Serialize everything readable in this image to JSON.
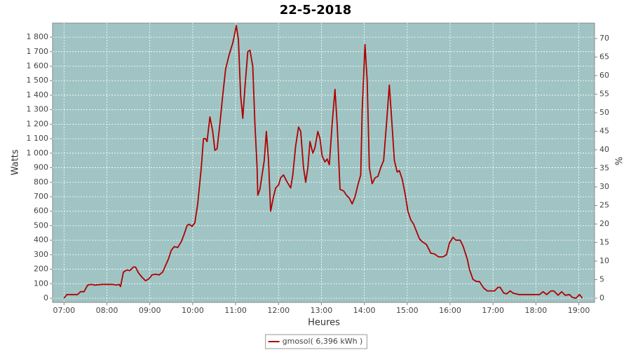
{
  "chart_data": {
    "type": "line",
    "title": "22-5-2018",
    "x_label": "Heures",
    "y_label": "Watts",
    "y2_label": "%",
    "x": [
      "07:00",
      "07:04",
      "07:19",
      "07:23",
      "07:28",
      "07:33",
      "07:38",
      "07:43",
      "07:53",
      "08:08",
      "08:13",
      "08:17",
      "08:19",
      "08:23",
      "08:28",
      "08:32",
      "08:37",
      "08:40",
      "08:44",
      "08:49",
      "08:54",
      "08:59",
      "09:03",
      "09:08",
      "09:13",
      "09:18",
      "09:22",
      "09:26",
      "09:30",
      "09:34",
      "09:39",
      "09:44",
      "09:48",
      "09:52",
      "09:55",
      "09:59",
      "10:03",
      "10:07",
      "10:12",
      "10:15",
      "10:18",
      "10:20",
      "10:24",
      "10:28",
      "10:31",
      "10:34",
      "10:38",
      "10:42",
      "10:46",
      "10:51",
      "10:56",
      "11:01",
      "11:04",
      "11:07",
      "11:10",
      "11:13",
      "11:17",
      "11:20",
      "11:24",
      "11:27",
      "11:30",
      "11:31",
      "11:34",
      "11:37",
      "11:40",
      "11:43",
      "11:46",
      "11:49",
      "11:53",
      "11:56",
      "12:00",
      "12:03",
      "12:07",
      "12:11",
      "12:17",
      "12:20",
      "12:24",
      "12:28",
      "12:31",
      "12:35",
      "12:38",
      "12:41",
      "12:44",
      "12:48",
      "12:51",
      "12:55",
      "12:58",
      "13:01",
      "13:05",
      "13:08",
      "13:11",
      "13:15",
      "13:19",
      "13:22",
      "13:26",
      "13:31",
      "13:35",
      "13:39",
      "13:43",
      "13:47",
      "13:51",
      "13:55",
      "13:57",
      "14:01",
      "14:04",
      "14:07",
      "14:11",
      "14:15",
      "14:19",
      "14:23",
      "14:27",
      "14:31",
      "14:35",
      "14:38",
      "14:42",
      "14:46",
      "14:49",
      "14:53",
      "14:57",
      "15:01",
      "15:05",
      "15:09",
      "15:13",
      "15:17",
      "15:21",
      "15:27",
      "15:33",
      "15:38",
      "15:44",
      "15:50",
      "15:55",
      "15:59",
      "16:04",
      "16:08",
      "16:14",
      "16:18",
      "16:24",
      "16:27",
      "16:32",
      "16:37",
      "16:41",
      "16:47",
      "16:52",
      "17:02",
      "17:07",
      "17:10",
      "17:15",
      "17:19",
      "17:24",
      "17:28",
      "17:36",
      "18:05",
      "18:10",
      "18:15",
      "18:21",
      "18:25",
      "18:31",
      "18:36",
      "18:41",
      "18:47",
      "18:51",
      "18:56",
      "19:01",
      "19:05"
    ],
    "series": [
      {
        "name": "gmosol( 6,396 kWh )",
        "color": "#b00000",
        "values": [
          0,
          25,
          25,
          45,
          45,
          90,
          95,
          90,
          95,
          95,
          90,
          95,
          80,
          180,
          195,
          190,
          215,
          215,
          175,
          145,
          120,
          135,
          160,
          165,
          160,
          180,
          225,
          270,
          330,
          355,
          350,
          390,
          440,
          500,
          510,
          495,
          520,
          650,
          900,
          1100,
          1100,
          1080,
          1250,
          1150,
          1020,
          1030,
          1200,
          1400,
          1580,
          1680,
          1760,
          1880,
          1780,
          1400,
          1240,
          1450,
          1700,
          1710,
          1600,
          1200,
          900,
          710,
          750,
          850,
          950,
          1150,
          950,
          600,
          700,
          760,
          780,
          830,
          850,
          810,
          760,
          850,
          1050,
          1180,
          1150,
          900,
          800,
          900,
          1080,
          1000,
          1040,
          1150,
          1100,
          980,
          940,
          960,
          920,
          1200,
          1440,
          1200,
          750,
          740,
          710,
          690,
          650,
          700,
          780,
          850,
          1300,
          1750,
          1500,
          900,
          790,
          830,
          840,
          900,
          950,
          1200,
          1470,
          1250,
          950,
          870,
          880,
          820,
          720,
          600,
          540,
          510,
          460,
          410,
          390,
          370,
          310,
          305,
          285,
          285,
          300,
          380,
          420,
          400,
          400,
          360,
          270,
          200,
          130,
          115,
          115,
          70,
          50,
          50,
          75,
          75,
          35,
          30,
          50,
          35,
          25,
          25,
          45,
          25,
          50,
          50,
          20,
          45,
          20,
          25,
          5,
          0,
          25,
          0
        ]
      }
    ],
    "xlim": [
      "06:44",
      "19:22"
    ],
    "xticks": [
      "07:00",
      "08:00",
      "09:00",
      "10:00",
      "11:00",
      "12:00",
      "13:00",
      "14:00",
      "15:00",
      "16:00",
      "17:00",
      "18:00",
      "19:00"
    ],
    "ylim": [
      -29,
      1897
    ],
    "yticks": [
      0,
      100,
      200,
      300,
      400,
      500,
      600,
      700,
      800,
      900,
      {
        "value": 1000,
        "label": "1 000"
      },
      {
        "value": 1100,
        "label": "1 100"
      },
      {
        "value": 1200,
        "label": "1 200"
      },
      {
        "value": 1300,
        "label": "1 300"
      },
      {
        "value": 1400,
        "label": "1 400"
      },
      {
        "value": 1500,
        "label": "1 500"
      },
      {
        "value": 1600,
        "label": "1 600"
      },
      {
        "value": 1700,
        "label": "1 700"
      },
      {
        "value": 1800,
        "label": "1 800"
      }
    ],
    "y2lim": [
      -1.13,
      74.15
    ],
    "y2ticks": [
      0,
      5,
      10,
      15,
      20,
      25,
      30,
      35,
      40,
      45,
      50,
      55,
      60,
      65,
      70
    ],
    "grid": true,
    "legend": "bottom",
    "plot_background": "#a0c4c4"
  }
}
